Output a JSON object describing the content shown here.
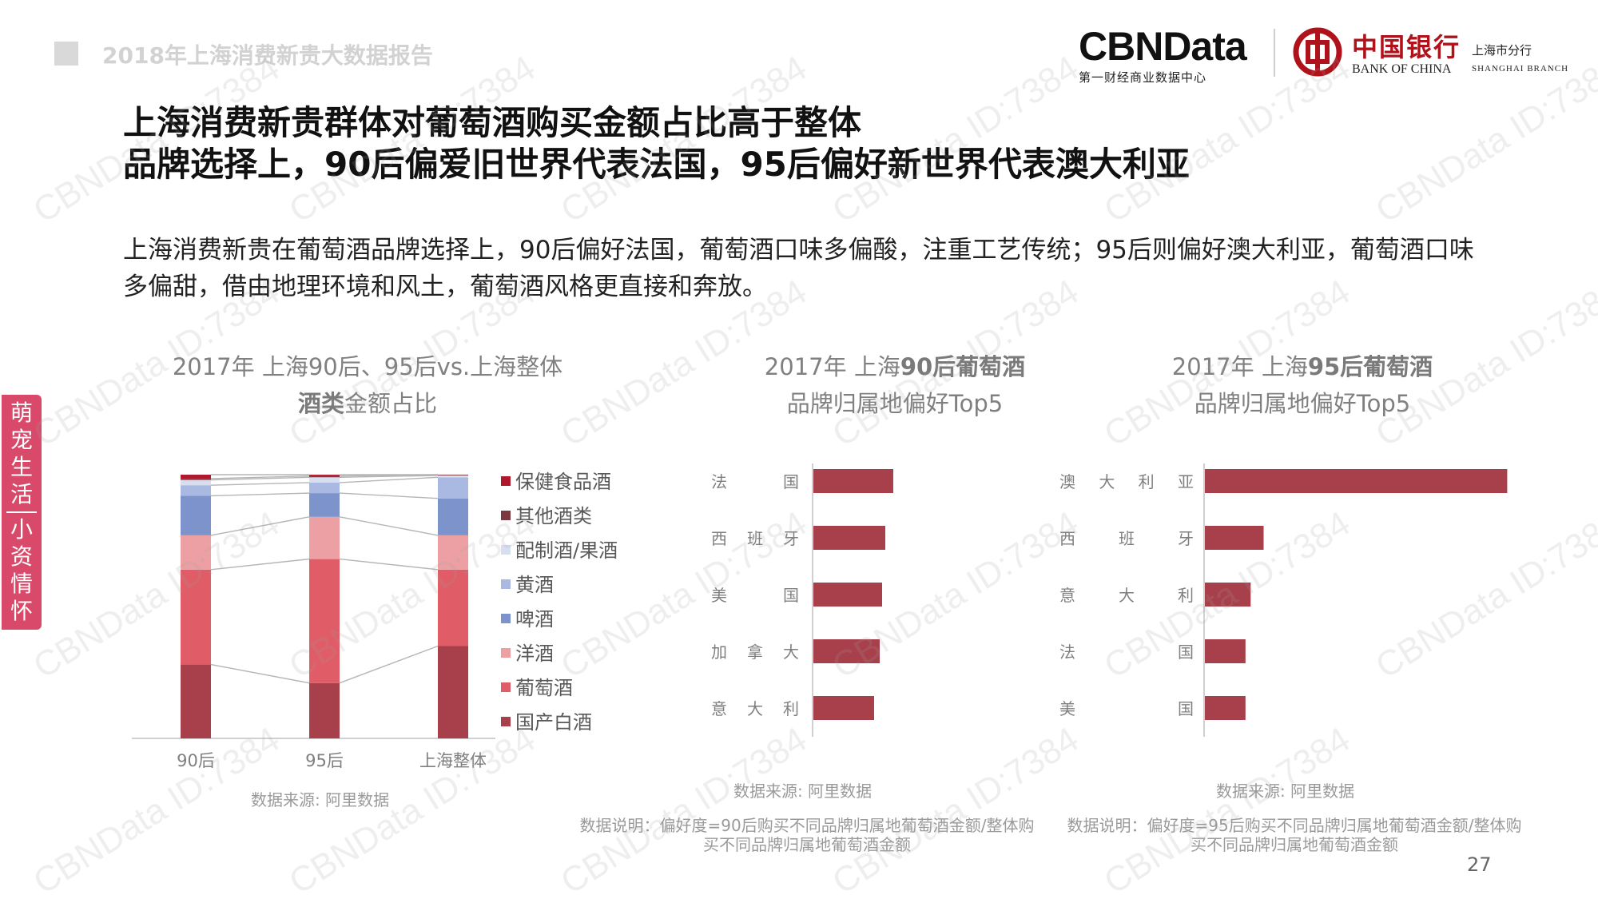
{
  "header": {
    "report_title": "2018年上海消费新贵大数据报告"
  },
  "logos": {
    "cbn_name": "CBNData",
    "cbn_sub": "第一财经商业数据中心",
    "boc_cn": "中国银行",
    "boc_en": "BANK OF CHINA",
    "boc_branch_cn": "上海市分行",
    "boc_branch_en": "SHANGHAI BRANCH"
  },
  "headline": {
    "line1": "上海消费新贵群体对葡萄酒购买金额占比高于整体",
    "line2": "品牌选择上，90后偏爱旧世界代表法国，95后偏好新世界代表澳大利亚"
  },
  "intro": "上海消费新贵在葡萄酒品牌选择上，90后偏好法国，葡萄酒口味多偏酸，注重工艺传统；95后则偏好澳大利亚，葡萄酒口味多偏甜，借由地理环境和风土，葡萄酒风格更直接和奔放。",
  "side_tab": {
    "seg1": "萌宠生活",
    "seg2": "小资情怀",
    "color": "#d94a6a"
  },
  "page_number": "27",
  "watermark_text": "CBNData ID:7384",
  "chart_data": [
    {
      "type": "bar",
      "stacked": true,
      "title_line1": "2017年 上海90后、95后vs.上海整体",
      "title_line2_bold": "酒类",
      "title_line2_rest": "金额占比",
      "categories": [
        "90后",
        "95后",
        "上海整体"
      ],
      "series": [
        {
          "name": "国产白酒",
          "color": "#a8404b",
          "values": [
            0.28,
            0.21,
            0.35
          ]
        },
        {
          "name": "葡萄酒",
          "color": "#e05c67",
          "values": [
            0.36,
            0.47,
            0.29
          ]
        },
        {
          "name": "洋酒",
          "color": "#eca0a3",
          "values": [
            0.13,
            0.16,
            0.13
          ]
        },
        {
          "name": "啤酒",
          "color": "#7d93cc",
          "values": [
            0.15,
            0.09,
            0.14
          ]
        },
        {
          "name": "黄酒",
          "color": "#a9b9e2",
          "values": [
            0.04,
            0.04,
            0.08
          ]
        },
        {
          "name": "配制酒/果酒",
          "color": "#d7deef",
          "values": [
            0.02,
            0.02,
            0.007
          ]
        },
        {
          "name": "其他酒类",
          "color": "#7a3a40",
          "values": [
            0.005,
            0.005,
            0.005
          ]
        },
        {
          "name": "保健食品酒",
          "color": "#b0182e",
          "values": [
            0.015,
            0.005,
            0.008
          ]
        }
      ],
      "ylim": [
        0,
        1
      ],
      "legend_position": "right",
      "source": "数据来源: 阿里数据"
    },
    {
      "type": "bar",
      "orientation": "horizontal",
      "title_line1_pre": "2017年  上海",
      "title_line1_bold": "90后葡萄酒",
      "title_line2": "品牌归属地偏好Top5",
      "categories": [
        "法　　国",
        "西 班 牙",
        "美　　国",
        "加 拿 大",
        "意 大 利"
      ],
      "values": [
        1.0,
        0.9,
        0.86,
        0.83,
        0.76
      ],
      "xlim": [
        0,
        4.2
      ],
      "color": "#a8404b",
      "source": "数据来源: 阿里数据",
      "note": "数据说明：偏好度=90后购买不同品牌归属地葡萄酒金额/整体购买不同品牌归属地葡萄酒金额"
    },
    {
      "type": "bar",
      "orientation": "horizontal",
      "title_line1_pre": "2017年  上海",
      "title_line1_bold": "95后葡萄酒",
      "title_line2": "品牌归属地偏好Top5",
      "categories": [
        "澳 大 利 亚",
        "西　班　牙",
        "意　大　利",
        "法　　　国",
        "美　　　国"
      ],
      "values": [
        3.5,
        0.68,
        0.53,
        0.47,
        0.47
      ],
      "xlim": [
        0,
        3.7
      ],
      "color": "#a8404b",
      "source": "数据来源: 阿里数据",
      "note": "数据说明：偏好度=95后购买不同品牌归属地葡萄酒金额/整体购买不同品牌归属地葡萄酒金额"
    }
  ]
}
